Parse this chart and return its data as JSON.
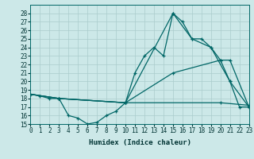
{
  "background_color": "#cce8e8",
  "grid_color": "#aacccc",
  "line_color": "#006666",
  "xlabel": "Humidex (Indice chaleur)",
  "ylim": [
    15,
    29
  ],
  "xlim": [
    0,
    23
  ],
  "yticks": [
    15,
    16,
    17,
    18,
    19,
    20,
    21,
    22,
    23,
    24,
    25,
    26,
    27,
    28
  ],
  "xticks": [
    0,
    1,
    2,
    3,
    4,
    5,
    6,
    7,
    8,
    9,
    10,
    11,
    12,
    13,
    14,
    15,
    16,
    17,
    18,
    19,
    20,
    21,
    22,
    23
  ],
  "series": [
    {
      "x": [
        0,
        1,
        2,
        3,
        4,
        5,
        6,
        7,
        8,
        9,
        10,
        11,
        12,
        13,
        14,
        15,
        16,
        17,
        18,
        19,
        20,
        21,
        22,
        23
      ],
      "y": [
        18.5,
        18.3,
        18.0,
        18.0,
        16.0,
        15.7,
        15.0,
        15.2,
        16.0,
        16.5,
        17.5,
        21.0,
        23.0,
        24.0,
        23.0,
        28.0,
        27.0,
        25.0,
        25.0,
        24.0,
        22.5,
        20.0,
        17.0,
        17.0
      ]
    },
    {
      "x": [
        0,
        3,
        10,
        15,
        17,
        19,
        21,
        23
      ],
      "y": [
        18.5,
        18.0,
        17.5,
        28.0,
        25.0,
        24.0,
        20.0,
        17.0
      ]
    },
    {
      "x": [
        0,
        3,
        10,
        15,
        20,
        21,
        23
      ],
      "y": [
        18.5,
        18.0,
        17.5,
        21.0,
        22.5,
        22.5,
        17.0
      ]
    },
    {
      "x": [
        0,
        3,
        10,
        20,
        23
      ],
      "y": [
        18.5,
        18.0,
        17.5,
        17.5,
        17.2
      ]
    }
  ]
}
